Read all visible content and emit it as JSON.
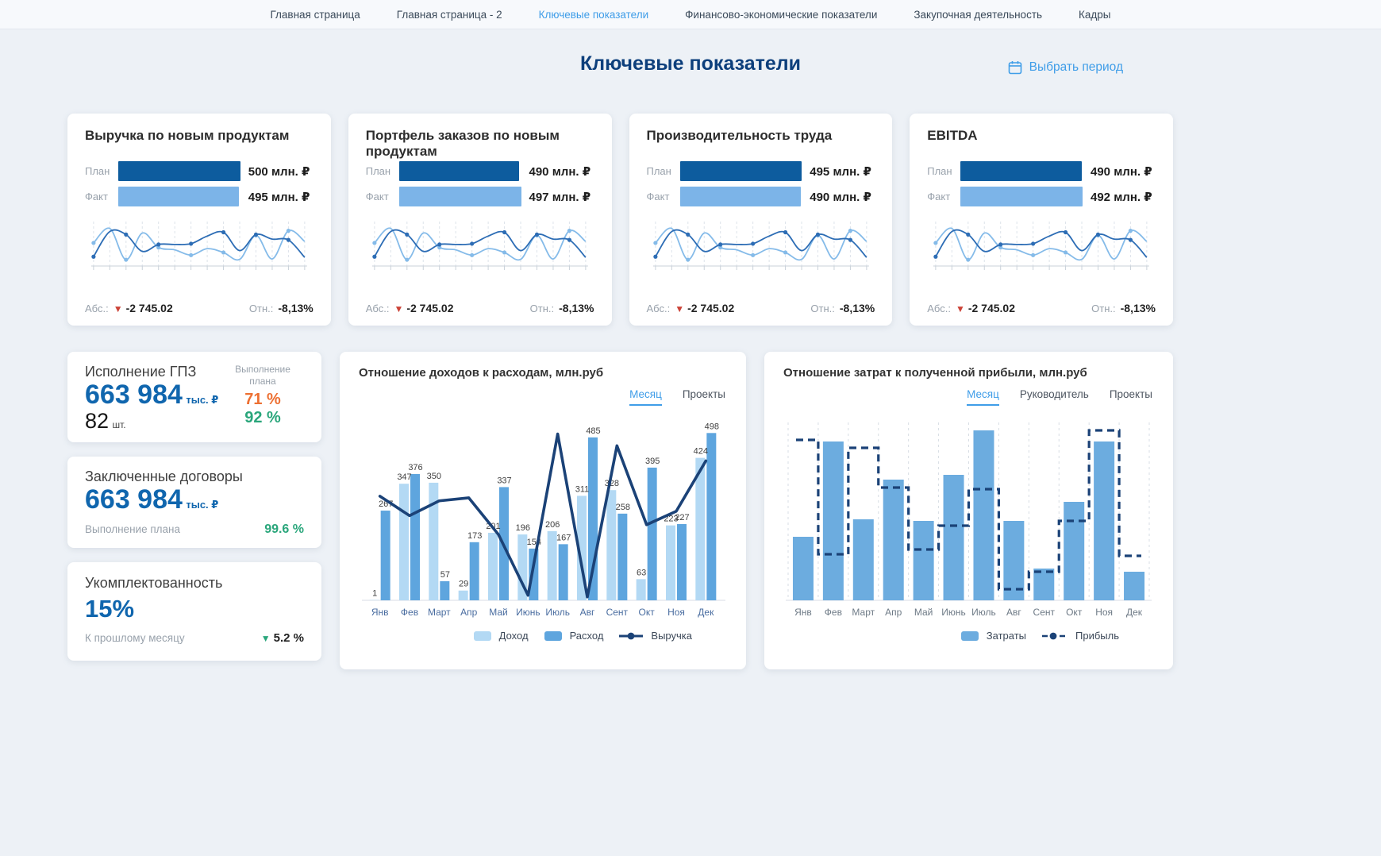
{
  "nav": {
    "items": [
      {
        "label": "Главная страница",
        "active": false
      },
      {
        "label": "Главная страница - 2",
        "active": false
      },
      {
        "label": "Ключевые показатели",
        "active": true
      },
      {
        "label": "Финансово-экономические показатели",
        "active": false
      },
      {
        "label": "Закупочная деятельность",
        "active": false
      },
      {
        "label": "Кадры",
        "active": false
      }
    ]
  },
  "header": {
    "title": "Ключевые показатели",
    "period_button": "Выбрать период"
  },
  "colors": {
    "accent": "#3f9de8",
    "plan_bar": "#0d5c9e",
    "fact_bar": "#7cb4e8",
    "title_navy": "#0d3f7c",
    "big_number_blue": "#1066ae",
    "orange": "#ed7032",
    "green": "#2aa67b",
    "red": "#cc4338",
    "line_navy": "#1b4277"
  },
  "kpi_cards": [
    {
      "title": "Выручка по новым продуктам",
      "plan_label": "План",
      "fact_label": "Факт",
      "plan_value": 500,
      "fact_value": 495,
      "plan_text": "500 млн. ₽",
      "fact_text": "495 млн. ₽",
      "abs_label": "Абс.:",
      "abs_value": "-2 745.02",
      "rel_label": "Отн.:",
      "rel_value": "-8,13%"
    },
    {
      "title": "Портфель заказов по новым продуктам",
      "plan_label": "План",
      "fact_label": "Факт",
      "plan_value": 490,
      "fact_value": 497,
      "plan_text": "490 млн. ₽",
      "fact_text": "497 млн. ₽",
      "abs_label": "Абс.:",
      "abs_value": "-2 745.02",
      "rel_label": "Отн.:",
      "rel_value": "-8,13%"
    },
    {
      "title": "Производительность труда",
      "plan_label": "План",
      "fact_label": "Факт",
      "plan_value": 495,
      "fact_value": 490,
      "plan_text": "495 млн. ₽",
      "fact_text": "490 млн. ₽",
      "abs_label": "Абс.:",
      "abs_value": "-2 745.02",
      "rel_label": "Отн.:",
      "rel_value": "-8,13%"
    },
    {
      "title": "EBITDA",
      "plan_label": "План",
      "fact_label": "Факт",
      "plan_value": 490,
      "fact_value": 492,
      "plan_text": "490 млн. ₽",
      "fact_text": "492 млн. ₽",
      "abs_label": "Абс.:",
      "abs_value": "-2 745.02",
      "rel_label": "Отн.:",
      "rel_value": "-8,13%"
    }
  ],
  "left_cards": {
    "gpz": {
      "title": "Исполнение ГПЗ",
      "amount": "663 984",
      "amount_unit": "тыс. ₽",
      "count": "82",
      "count_unit": "шт.",
      "completion_label": "Выполнение плана",
      "pct_orange": "71 %",
      "pct_green": "92 %"
    },
    "contracts": {
      "title": "Заключенные договоры",
      "amount": "663 984",
      "amount_unit": "тыс. ₽",
      "completion_label": "Выполнение плана",
      "pct": "99.6 %"
    },
    "staffing": {
      "title": "Укомплектованность",
      "value": "15%",
      "compare_label": "К прошлому месяцу",
      "delta": "5.2 %"
    }
  },
  "chart_data": [
    {
      "type": "bar",
      "variant": "grouped-bars-with-line",
      "title": "Отношение доходов к расходам, млн.руб",
      "tabs": [
        "Месяц",
        "Проекты"
      ],
      "active_tab": "Месяц",
      "categories": [
        "Янв",
        "Фев",
        "Март",
        "Апр",
        "Май",
        "Июнь",
        "Июль",
        "Авг",
        "Сент",
        "Окт",
        "Ноя",
        "Дек"
      ],
      "series": [
        {
          "name": "Доход",
          "color": "#b3d9f4",
          "values": [
            1,
            347,
            350,
            29,
            201,
            196,
            206,
            311,
            328,
            63,
            223,
            424
          ]
        },
        {
          "name": "Расход",
          "color": "#5ea5de",
          "values": [
            267,
            376,
            57,
            173,
            337,
            154,
            167,
            485,
            258,
            395,
            227,
            498
          ]
        }
      ],
      "line": {
        "name": "Выручка",
        "color": "#1b4277",
        "style": "solid",
        "values": [
          310,
          252,
          296,
          305,
          196,
          15,
          495,
          10,
          460,
          225,
          265,
          415
        ]
      },
      "ylim": [
        0,
        520
      ],
      "value_labels": true,
      "grid": "none",
      "legend_position": "bottom"
    },
    {
      "type": "bar",
      "variant": "bars-with-dashed-step-line",
      "title": "Отношение затрат к полученной прибыли, млн.руб",
      "tabs": [
        "Месяц",
        "Руководитель",
        "Проекты"
      ],
      "active_tab": "Месяц",
      "categories": [
        "Янв",
        "Фев",
        "Март",
        "Апр",
        "Май",
        "Июнь",
        "Июль",
        "Авг",
        "Сент",
        "Окт",
        "Ноя",
        "Дек"
      ],
      "series": [
        {
          "name": "Затраты",
          "color": "#6cacdf",
          "values": [
            200,
            500,
            255,
            380,
            250,
            395,
            535,
            250,
            100,
            310,
            500,
            90
          ]
        }
      ],
      "line": {
        "name": "Прибыль",
        "color": "#1b4277",
        "style": "dashed",
        "values": [
          505,
          145,
          480,
          355,
          160,
          235,
          350,
          35,
          90,
          250,
          535,
          140
        ]
      },
      "ylim": [
        0,
        560
      ],
      "value_labels": false,
      "grid": "vertical-dashed",
      "legend_position": "bottom"
    },
    {
      "type": "sparkline",
      "series": [
        {
          "name": "линия-тёмная",
          "color": "#2d6db5",
          "values": [
            12,
            78,
            70,
            26,
            44,
            44,
            46,
            66,
            76,
            28,
            70,
            58,
            56,
            10
          ]
        },
        {
          "name": "линия-светлая",
          "color": "#85bbe9",
          "values": [
            48,
            86,
            4,
            74,
            36,
            30,
            16,
            33,
            23,
            5,
            68,
            6,
            80,
            52
          ]
        }
      ]
    }
  ]
}
